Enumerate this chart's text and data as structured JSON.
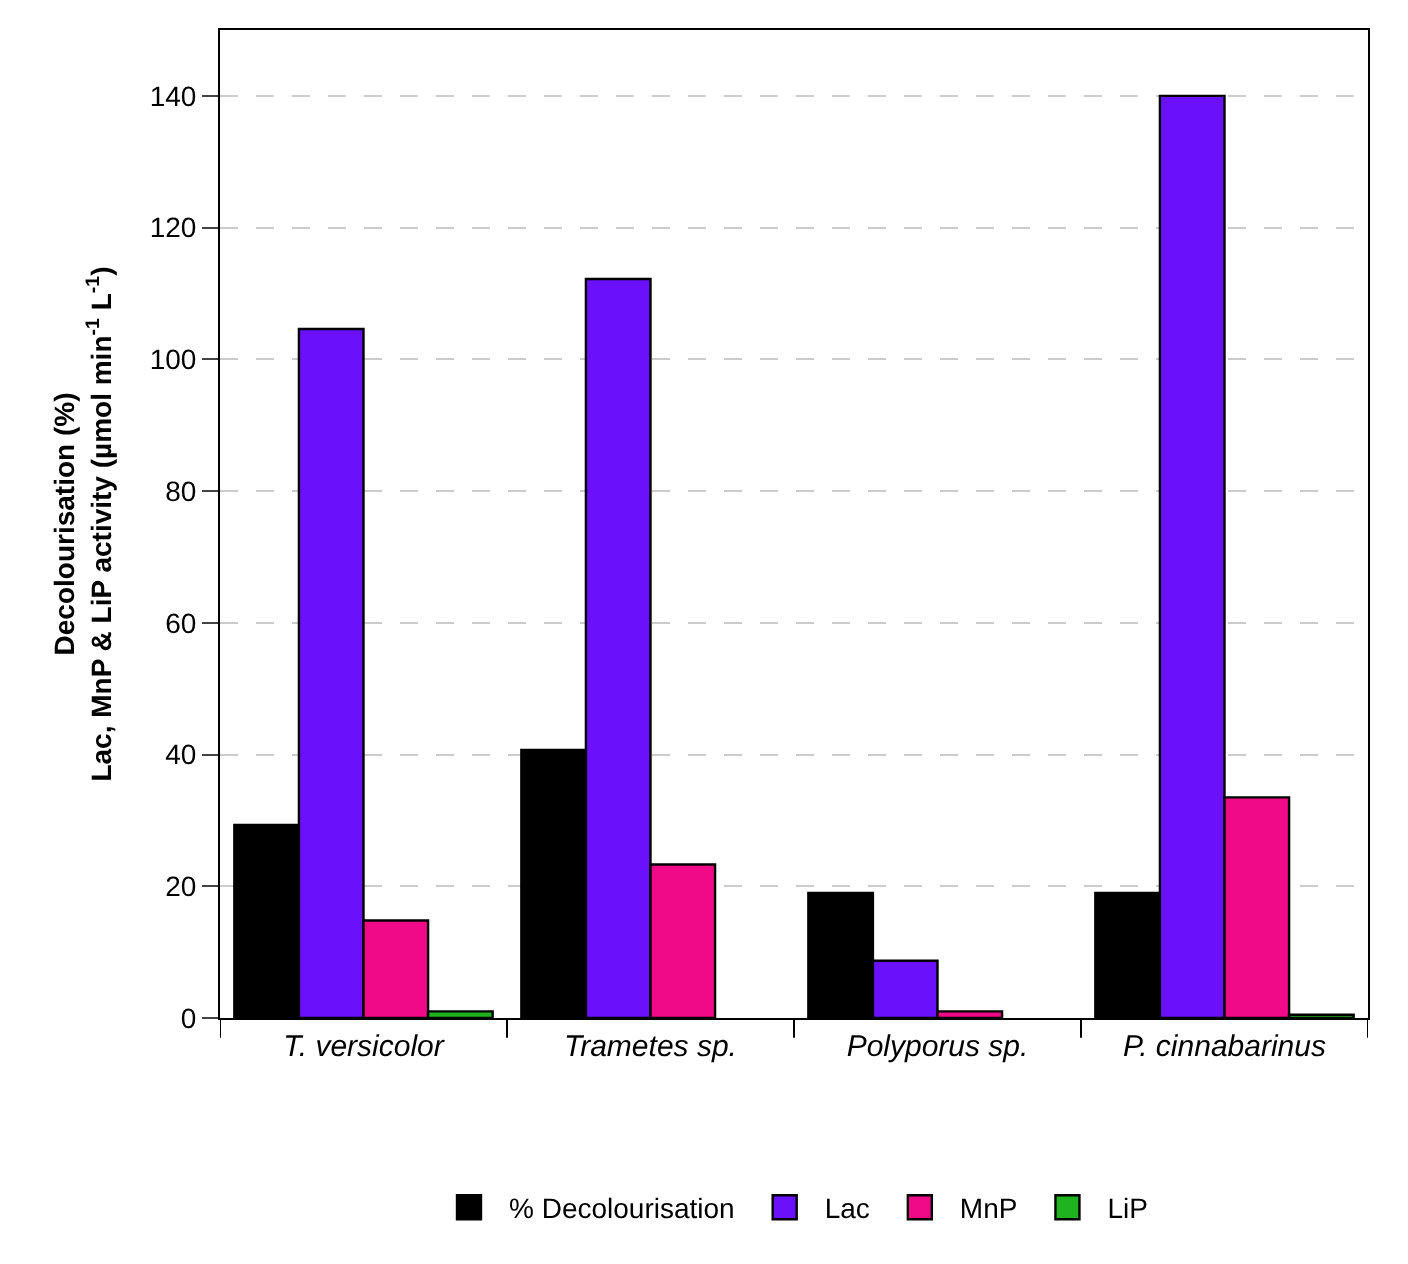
{
  "chart_data": {
    "type": "bar",
    "ylabel": "Decolourisation (%)\nLac, MnP & LiP activity (µmol min$^{-1}$ L$^{-1}$)",
    "categories": [
      "T. versicolor",
      "Trametes sp.",
      "Polyporus sp.",
      "P. cinnabarinus"
    ],
    "series": [
      {
        "name": "% Decolourisation",
        "color": "#000000",
        "values": [
          29.3,
          40.7,
          19,
          19
        ]
      },
      {
        "name": "Lac",
        "color": "#6a10fa",
        "values": [
          104.6,
          112.2,
          8.7,
          140
        ]
      },
      {
        "name": "MnP",
        "color": "#f00a87",
        "values": [
          14.8,
          23.3,
          1,
          33.5
        ]
      },
      {
        "name": "LiP",
        "color": "#1fb31f",
        "values": [
          1,
          null,
          null,
          0.5
        ]
      }
    ],
    "ylim": [
      0,
      150
    ],
    "yticks": [
      0,
      20,
      40,
      60,
      80,
      100,
      120,
      140
    ],
    "grid": "y",
    "legend": "bottom"
  }
}
